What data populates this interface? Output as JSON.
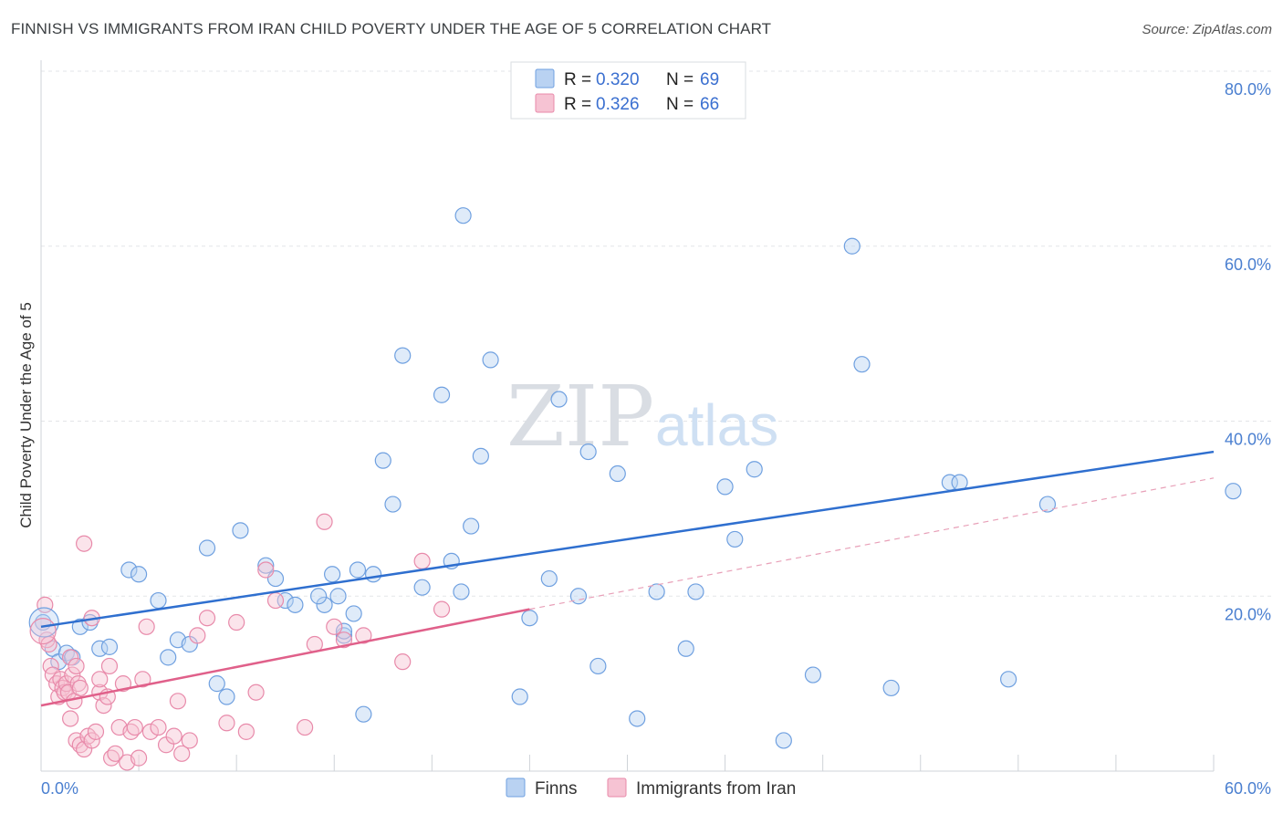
{
  "chart_data": {
    "type": "scatter",
    "title": "FINNISH VS IMMIGRANTS FROM IRAN CHILD POVERTY UNDER THE AGE OF 5 CORRELATION CHART",
    "source": "Source: ZipAtlas.com",
    "ylabel": "Child Poverty Under the Age of 5",
    "xlim": [
      0,
      60
    ],
    "ylim": [
      0,
      80
    ],
    "x_tick_labels": [
      "0.0%",
      "60.0%"
    ],
    "y_ticks": [
      20,
      40,
      60,
      80
    ],
    "y_tick_labels": [
      "20.0%",
      "40.0%",
      "60.0%",
      "80.0%"
    ],
    "watermark": {
      "zip": "ZIP",
      "atlas": "atlas"
    },
    "legend": [
      {
        "r_label": "R =",
        "r_value": "0.320",
        "n_label": "N =",
        "n_value": "69"
      },
      {
        "r_label": "R =",
        "r_value": "0.326",
        "n_label": "N =",
        "n_value": "66"
      }
    ],
    "series": [
      {
        "name": "Finns",
        "color": "#6fa0e0",
        "fill": "#b9d2f2",
        "trend": {
          "x0": 0,
          "y0": 16.5,
          "x1": 60,
          "y1": 36.5,
          "color": "#2f6fcf"
        },
        "points": [
          [
            0.1,
            17
          ],
          [
            0.6,
            14
          ],
          [
            0.9,
            12.5
          ],
          [
            1.3,
            13.5
          ],
          [
            1.6,
            13
          ],
          [
            2.0,
            16.5
          ],
          [
            2.5,
            17
          ],
          [
            3.0,
            14
          ],
          [
            3.5,
            14.2
          ],
          [
            4.5,
            23
          ],
          [
            5.0,
            22.5
          ],
          [
            6.0,
            19.5
          ],
          [
            6.5,
            13
          ],
          [
            7.0,
            15
          ],
          [
            7.6,
            14.5
          ],
          [
            8.5,
            25.5
          ],
          [
            9.0,
            10
          ],
          [
            9.5,
            8.5
          ],
          [
            10.2,
            27.5
          ],
          [
            11.5,
            23.5
          ],
          [
            12.0,
            22
          ],
          [
            12.5,
            19.5
          ],
          [
            13.0,
            19
          ],
          [
            14.5,
            19
          ],
          [
            15.5,
            15.5
          ],
          [
            16.0,
            18
          ],
          [
            14.2,
            20
          ],
          [
            15.2,
            20
          ],
          [
            14.9,
            22.5
          ],
          [
            16.2,
            23
          ],
          [
            17.0,
            22.5
          ],
          [
            16.5,
            6.5
          ],
          [
            15.5,
            16
          ],
          [
            17.5,
            35.5
          ],
          [
            18.0,
            30.5
          ],
          [
            18.5,
            47.5
          ],
          [
            19.5,
            21
          ],
          [
            20.5,
            43
          ],
          [
            21.0,
            24
          ],
          [
            21.5,
            20.5
          ],
          [
            22.0,
            28
          ],
          [
            22.5,
            36
          ],
          [
            23.0,
            47
          ],
          [
            24.5,
            8.5
          ],
          [
            25.0,
            17.5
          ],
          [
            26.0,
            22
          ],
          [
            26.5,
            42.5
          ],
          [
            27.5,
            20
          ],
          [
            28.0,
            36.5
          ],
          [
            28.5,
            12
          ],
          [
            29.5,
            34
          ],
          [
            30.5,
            6
          ],
          [
            31.5,
            20.5
          ],
          [
            33.0,
            14
          ],
          [
            33.5,
            20.5
          ],
          [
            35.5,
            26.5
          ],
          [
            35.0,
            32.5
          ],
          [
            36.5,
            34.5
          ],
          [
            21.6,
            63.5
          ],
          [
            38.0,
            3.5
          ],
          [
            39.5,
            11
          ],
          [
            42.0,
            46.5
          ],
          [
            43.5,
            9.5
          ],
          [
            46.5,
            33
          ],
          [
            47.0,
            33
          ],
          [
            41.5,
            60
          ],
          [
            49.5,
            10.5
          ],
          [
            51.5,
            30.5
          ],
          [
            61.0,
            32
          ]
        ]
      },
      {
        "name": "Immigrants from Iran",
        "color": "#e88aaa",
        "fill": "#f6c3d3",
        "trend": {
          "x0": 0,
          "y0": 7.5,
          "x1": 25,
          "y1": 18.5,
          "color": "#e0608a"
        },
        "trend_ext": {
          "x0": 25,
          "y0": 18.5,
          "x1": 60,
          "y1": 33.5,
          "color": "#e8a0b8"
        },
        "points": [
          [
            0.2,
            19
          ],
          [
            0.3,
            15
          ],
          [
            0.4,
            14.5
          ],
          [
            0.5,
            12
          ],
          [
            0.6,
            11
          ],
          [
            0.8,
            10
          ],
          [
            0.9,
            8.5
          ],
          [
            1.0,
            10.5
          ],
          [
            1.1,
            9.5
          ],
          [
            1.2,
            9
          ],
          [
            1.3,
            10
          ],
          [
            1.4,
            9
          ],
          [
            1.5,
            13
          ],
          [
            1.6,
            11
          ],
          [
            1.7,
            8
          ],
          [
            1.8,
            12
          ],
          [
            1.9,
            10
          ],
          [
            2.0,
            9.5
          ],
          [
            1.5,
            6
          ],
          [
            1.8,
            3.5
          ],
          [
            2.0,
            3
          ],
          [
            2.2,
            2.5
          ],
          [
            2.4,
            4
          ],
          [
            2.6,
            3.5
          ],
          [
            2.8,
            4.5
          ],
          [
            3.0,
            9
          ],
          [
            3.2,
            7.5
          ],
          [
            3.4,
            8.5
          ],
          [
            3.6,
            1.5
          ],
          [
            3.8,
            2
          ],
          [
            4.0,
            5
          ],
          [
            4.2,
            10
          ],
          [
            4.4,
            1
          ],
          [
            4.6,
            4.5
          ],
          [
            4.8,
            5
          ],
          [
            5.0,
            1.5
          ],
          [
            5.2,
            10.5
          ],
          [
            5.4,
            16.5
          ],
          [
            5.6,
            4.5
          ],
          [
            6.0,
            5
          ],
          [
            6.4,
            3
          ],
          [
            6.8,
            4
          ],
          [
            7.0,
            8
          ],
          [
            7.2,
            2
          ],
          [
            7.6,
            3.5
          ],
          [
            8.0,
            15.5
          ],
          [
            8.5,
            17.5
          ],
          [
            9.5,
            5.5
          ],
          [
            10.0,
            17
          ],
          [
            10.5,
            4.5
          ],
          [
            11.0,
            9
          ],
          [
            11.5,
            23
          ],
          [
            12.0,
            19.5
          ],
          [
            13.5,
            5
          ],
          [
            14.0,
            14.5
          ],
          [
            14.5,
            28.5
          ],
          [
            15.0,
            16.5
          ],
          [
            15.5,
            15
          ],
          [
            16.5,
            15.5
          ],
          [
            18.5,
            12.5
          ],
          [
            19.5,
            24
          ],
          [
            20.5,
            18.5
          ],
          [
            2.2,
            26
          ],
          [
            2.6,
            17.5
          ],
          [
            3.0,
            10.5
          ],
          [
            3.5,
            12
          ]
        ]
      }
    ]
  }
}
